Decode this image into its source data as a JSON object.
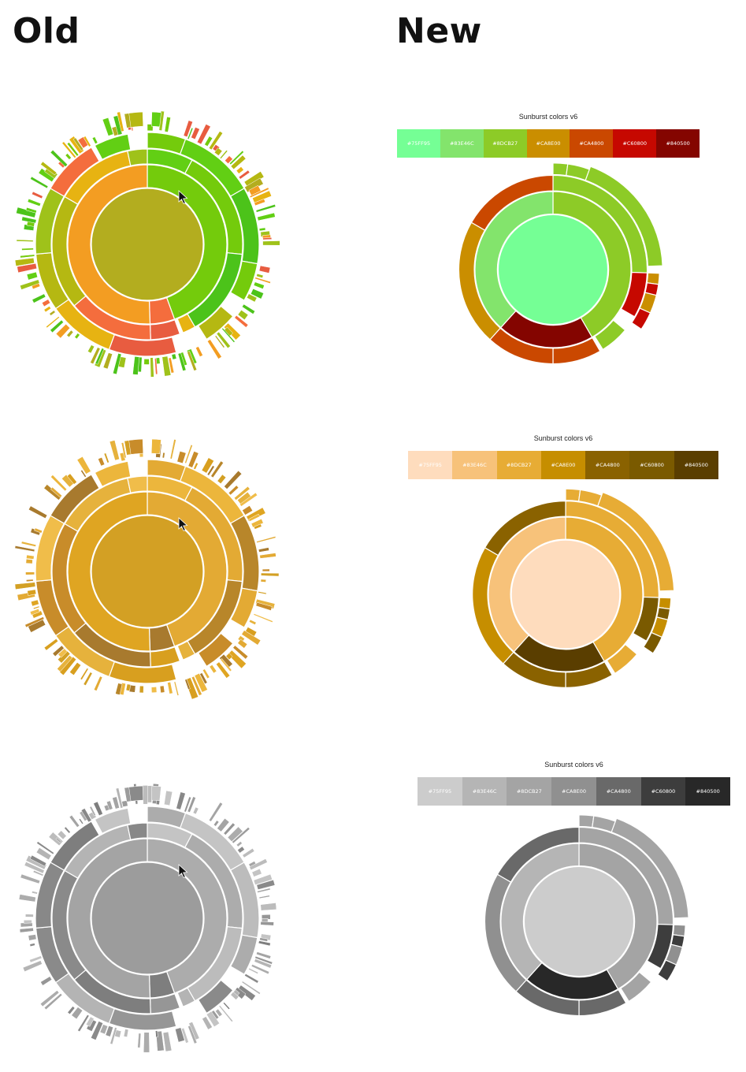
{
  "headings": {
    "old": "Old",
    "new": "New"
  },
  "legend": {
    "title": "Sunburst colors v6",
    "codes": [
      "#75FF95",
      "#83E46C",
      "#8DCB27",
      "#CA8E00",
      "#CA4800",
      "#C60800",
      "#840500"
    ]
  },
  "palettes": {
    "green_red": {
      "old": [
        "#b3ad1f",
        "#f39d22",
        "#74cb0c",
        "#e7b312",
        "#b5b812",
        "#f46d3d",
        "#62cf14",
        "#e85c40",
        "#4cc31a",
        "#9fc21a"
      ],
      "new": [
        "#75ff95",
        "#83e46c",
        "#8dcb27",
        "#ca8e00",
        "#ca4800",
        "#c60800",
        "#840500"
      ]
    },
    "orange": {
      "old": [
        "#d3a024",
        "#dfa522",
        "#e3aa34",
        "#e6b23c",
        "#c88c2a",
        "#a87a2e",
        "#ecb63c",
        "#d89f1f",
        "#b8862a",
        "#f0bd4a"
      ],
      "new": [
        "#fedcbd",
        "#f7c27a",
        "#e7ac35",
        "#c68e00",
        "#8a6200",
        "#7a5a00",
        "#5a3e00"
      ]
    },
    "gray": {
      "old": [
        "#9c9c9c",
        "#a4a4a4",
        "#acacac",
        "#b4b4b4",
        "#8a8a8a",
        "#7e7e7e",
        "#c4c4c4",
        "#969696",
        "#bcbcbc",
        "#888888"
      ],
      "new": [
        "#cccccc",
        "#b5b5b5",
        "#a4a4a4",
        "#909090",
        "#696969",
        "#3d3d3d",
        "#282828"
      ]
    }
  }
}
